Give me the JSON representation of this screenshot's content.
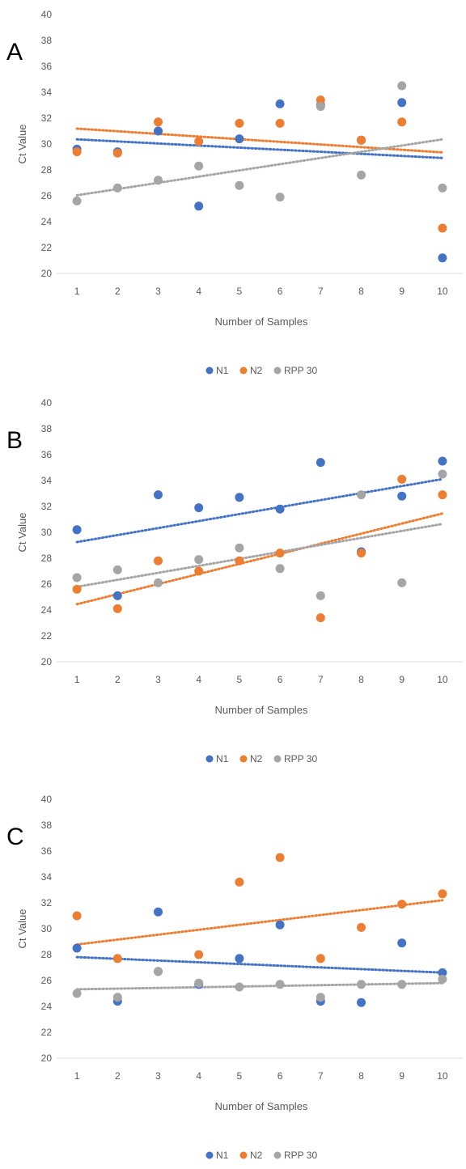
{
  "chart_data": [
    {
      "type": "scatter",
      "panel_label": "A",
      "xlabel": "Number of Samples",
      "ylabel": "Ct Value",
      "x": [
        1,
        2,
        3,
        4,
        5,
        6,
        7,
        8,
        9,
        10
      ],
      "xlim": [
        0.5,
        10.5
      ],
      "ylim": [
        20,
        40
      ],
      "yticks": [
        20,
        22,
        24,
        26,
        28,
        30,
        32,
        34,
        36,
        38,
        40
      ],
      "grid": false,
      "legend_position": "bottom",
      "series": [
        {
          "name": "N1",
          "color": "#4472C4",
          "values": [
            29.6,
            29.4,
            31.0,
            25.2,
            30.4,
            33.1,
            33.0,
            30.3,
            33.2,
            21.2
          ],
          "trendline": "linear"
        },
        {
          "name": "N2",
          "color": "#ED7D31",
          "values": [
            29.4,
            29.3,
            31.7,
            30.2,
            31.6,
            31.6,
            33.4,
            30.3,
            31.7,
            23.5
          ],
          "trendline": "linear"
        },
        {
          "name": "RPP 30",
          "color": "#A5A5A5",
          "values": [
            25.6,
            26.6,
            27.2,
            28.3,
            26.8,
            25.9,
            32.9,
            27.6,
            34.5,
            26.6
          ],
          "trendline": "linear"
        }
      ]
    },
    {
      "type": "scatter",
      "panel_label": "B",
      "xlabel": "Number of Samples",
      "ylabel": "Ct Value",
      "x": [
        1,
        2,
        3,
        4,
        5,
        6,
        7,
        8,
        9,
        10
      ],
      "xlim": [
        0.5,
        10.5
      ],
      "ylim": [
        20,
        40
      ],
      "yticks": [
        20,
        22,
        24,
        26,
        28,
        30,
        32,
        34,
        36,
        38,
        40
      ],
      "grid": false,
      "legend_position": "bottom",
      "series": [
        {
          "name": "N1",
          "color": "#4472C4",
          "values": [
            30.2,
            25.1,
            32.9,
            31.9,
            32.7,
            31.8,
            35.4,
            28.5,
            32.8,
            35.5
          ],
          "trendline": "linear"
        },
        {
          "name": "N2",
          "color": "#ED7D31",
          "values": [
            25.6,
            24.1,
            27.8,
            27.0,
            27.8,
            28.4,
            23.4,
            28.4,
            34.1,
            32.9
          ],
          "trendline": "linear"
        },
        {
          "name": "RPP 30",
          "color": "#A5A5A5",
          "values": [
            26.5,
            27.1,
            26.1,
            27.9,
            28.8,
            27.2,
            25.1,
            32.9,
            26.1,
            34.5
          ],
          "trendline": "linear"
        }
      ]
    },
    {
      "type": "scatter",
      "panel_label": "C",
      "xlabel": "Number of Samples",
      "ylabel": "Ct Value",
      "x": [
        1,
        2,
        3,
        4,
        5,
        6,
        7,
        8,
        9,
        10
      ],
      "xlim": [
        0.5,
        10.5
      ],
      "ylim": [
        20,
        40
      ],
      "yticks": [
        20,
        22,
        24,
        26,
        28,
        30,
        32,
        34,
        36,
        38,
        40
      ],
      "grid": false,
      "legend_position": "bottom",
      "series": [
        {
          "name": "N1",
          "color": "#4472C4",
          "values": [
            28.5,
            24.4,
            31.3,
            25.7,
            27.7,
            30.3,
            24.4,
            24.3,
            28.9,
            26.6
          ],
          "trendline": "linear"
        },
        {
          "name": "N2",
          "color": "#ED7D31",
          "values": [
            31.0,
            27.7,
            26.7,
            28.0,
            33.6,
            35.5,
            27.7,
            30.1,
            31.9,
            32.7
          ],
          "trendline": "linear"
        },
        {
          "name": "RPP 30",
          "color": "#A5A5A5",
          "values": [
            25.0,
            24.7,
            26.7,
            25.8,
            25.5,
            25.7,
            24.7,
            25.7,
            25.7,
            26.1
          ],
          "trendline": "linear"
        }
      ]
    }
  ]
}
